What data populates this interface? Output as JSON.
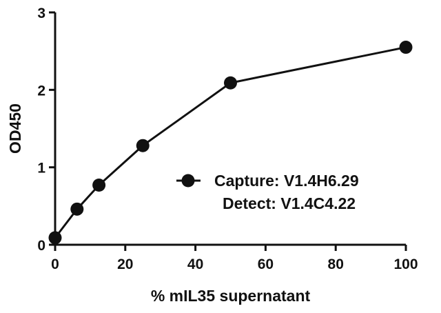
{
  "chart_data": {
    "type": "line",
    "xlabel": "% mIL35 supernatant",
    "ylabel": "OD450",
    "xlim": [
      0,
      100
    ],
    "ylim": [
      0,
      3
    ],
    "xticks": [
      0,
      20,
      40,
      60,
      80,
      100
    ],
    "yticks": [
      0,
      1,
      2,
      3
    ],
    "grid": false,
    "legend_position": "center-right",
    "series": [
      {
        "legend_lines": [
          "Capture: V1.4H6.29",
          "Detect: V1.4C4.22"
        ],
        "color": "#111111",
        "x": [
          0,
          6.25,
          12.5,
          25,
          50,
          100
        ],
        "y": [
          0.09,
          0.46,
          0.77,
          1.28,
          2.09,
          2.55
        ]
      }
    ]
  }
}
